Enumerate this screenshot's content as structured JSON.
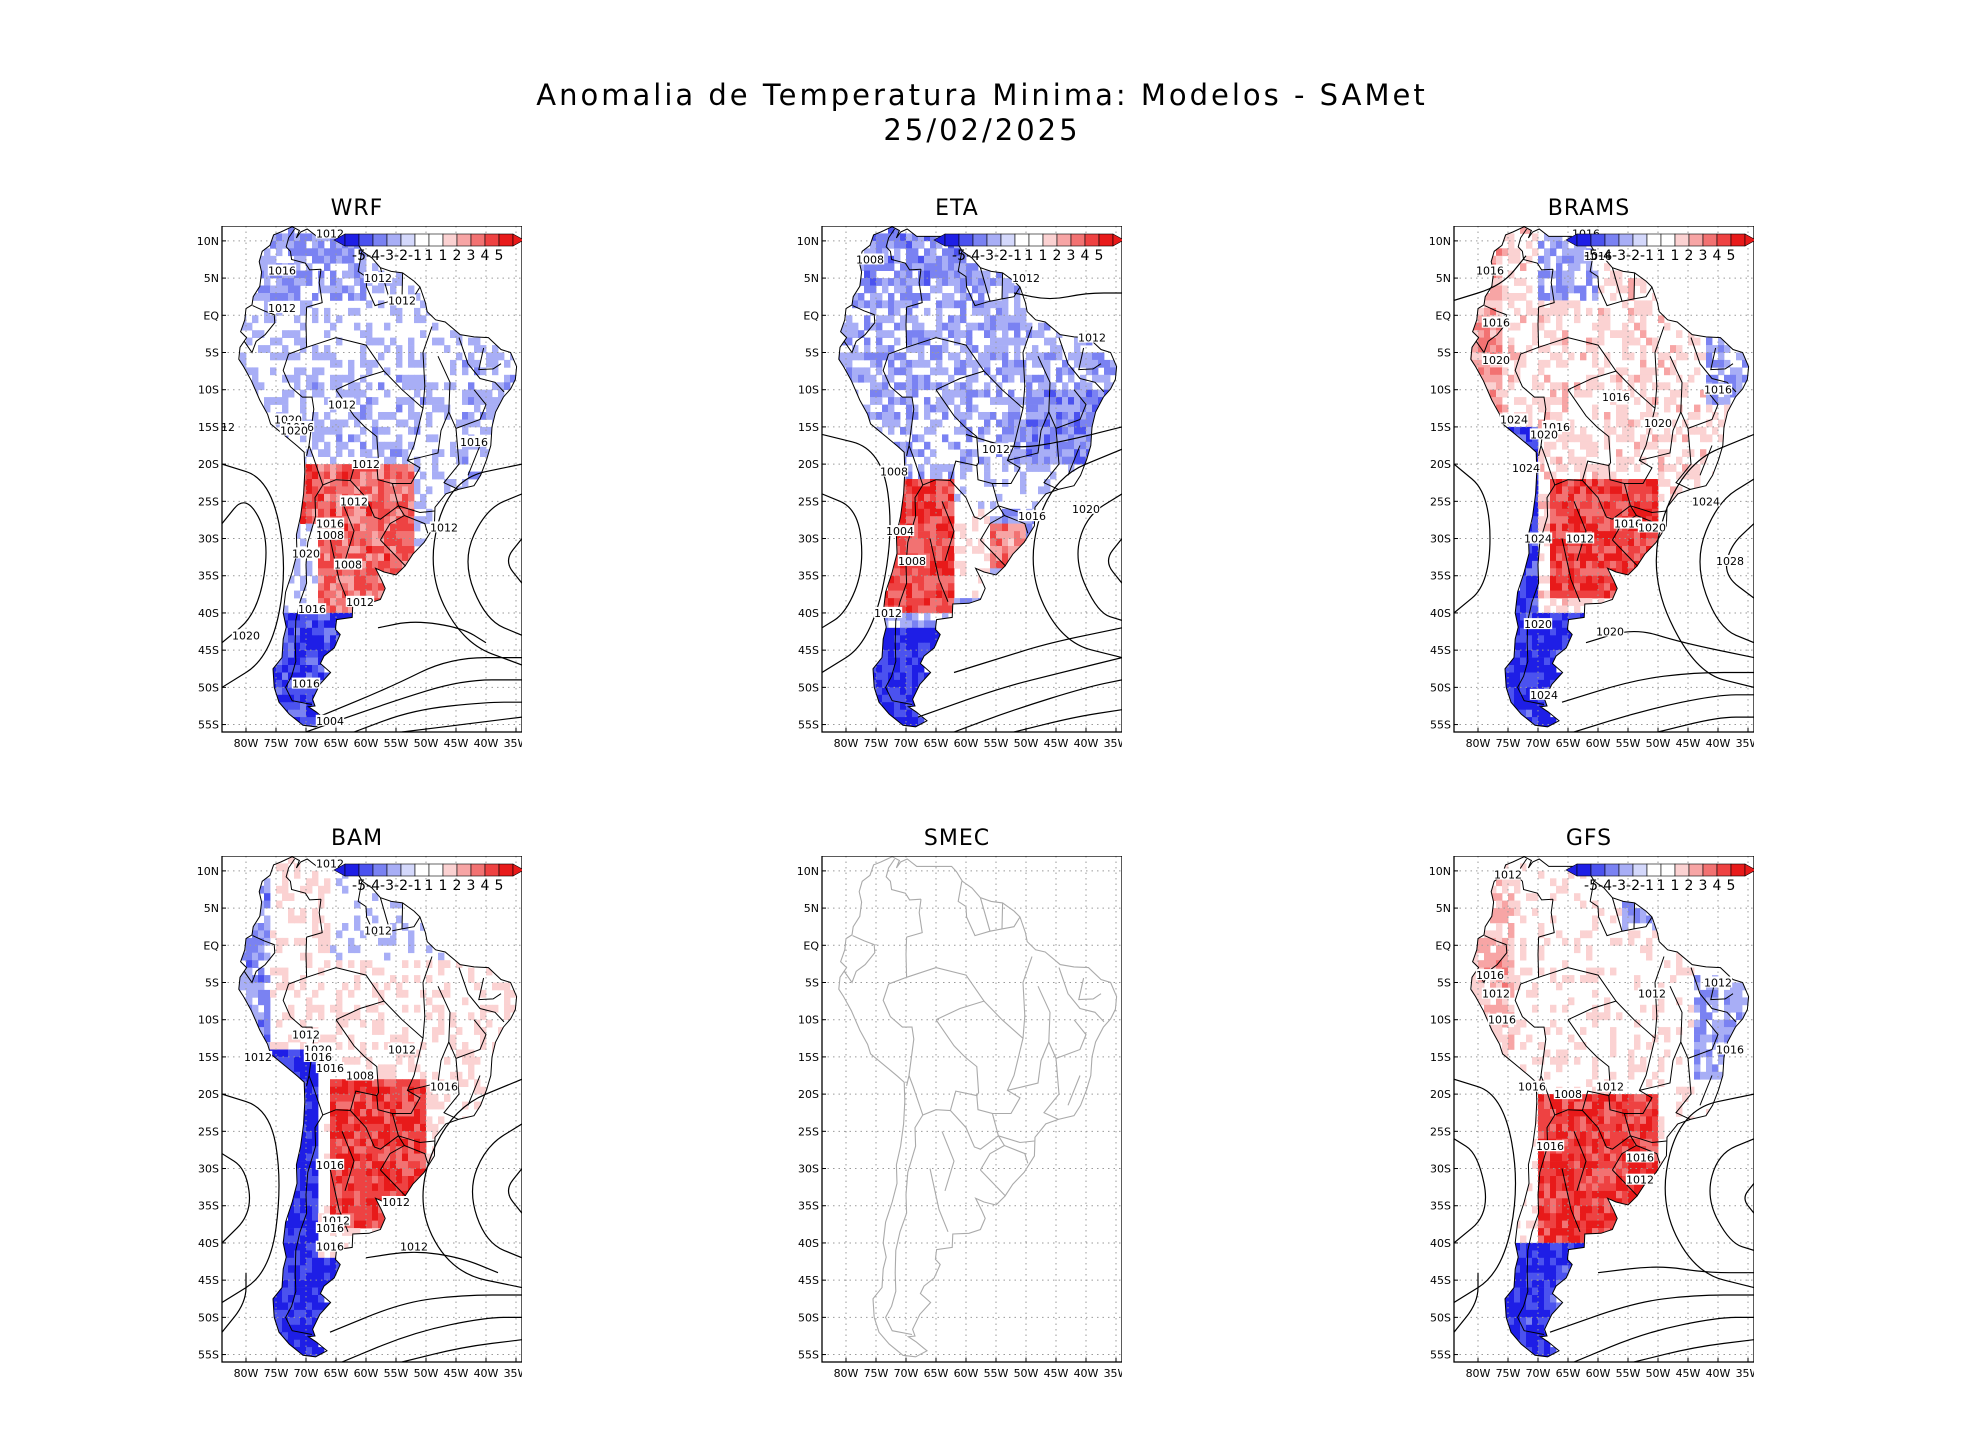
{
  "title": {
    "line1": "Anomalia de Temperatura Minima: Modelos - SAMet",
    "line2": "25/02/2025"
  },
  "colors": {
    "neg": [
      "#1e1ee6",
      "#4b52ef",
      "#7a82f2",
      "#a8aef6",
      "#d4d8fb"
    ],
    "neutral": "#ffffff",
    "pos": [
      "#fbd2d2",
      "#f7a5a5",
      "#f27272",
      "#ee4242",
      "#e81a1a"
    ],
    "contour": "#000000",
    "border": "#000000",
    "border_blank": "#aaaaaa",
    "grid": "#9a9a9a"
  },
  "colorbar": {
    "labels": [
      "-5",
      "-4",
      "-3",
      "-2",
      "-1",
      "1",
      "1",
      "2",
      "3",
      "4",
      "5"
    ]
  },
  "axes": {
    "lat_labels": [
      "10N",
      "5N",
      "EQ",
      "5S",
      "10S",
      "15S",
      "20S",
      "25S",
      "30S",
      "35S",
      "40S",
      "45S",
      "50S",
      "55S"
    ],
    "lon_labels": [
      "80W",
      "75W",
      "70W",
      "65W",
      "60W",
      "55W",
      "50W",
      "45W",
      "40W",
      "35W"
    ]
  },
  "panels": [
    {
      "name": "WRF",
      "has_data": true,
      "regime": "wrf",
      "labels": [
        "1012",
        "1012",
        "1016",
        "1012",
        "1012",
        "1012",
        "1020",
        "1016",
        "1020",
        "1012",
        "1016",
        "1012",
        "1016",
        "1008",
        "1020",
        "1008",
        "1012",
        "1016",
        "1012",
        "1016",
        "1004",
        "1020",
        "12"
      ]
    },
    {
      "name": "ETA",
      "has_data": true,
      "regime": "eta",
      "labels": [
        "1008",
        "1012",
        "1012",
        "1012",
        "1008",
        "1004",
        "1008",
        "1016",
        "1020",
        "1012"
      ]
    },
    {
      "name": "BRAMS",
      "has_data": true,
      "regime": "brams",
      "labels": [
        "1016",
        "1016",
        "1016",
        "1016",
        "1020",
        "1016",
        "1016",
        "1024",
        "1016",
        "1020",
        "1020",
        "1024",
        "1024",
        "1012",
        "1016",
        "1020",
        "1024",
        "1028",
        "1020",
        "1020",
        "1024"
      ]
    },
    {
      "name": "BAM",
      "has_data": true,
      "regime": "bam",
      "labels": [
        "1012",
        "1012",
        "1012",
        "1012",
        "1020",
        "1016",
        "1016",
        "1008",
        "1016",
        "1012",
        "1016",
        "1012",
        "1012",
        "1016",
        "1016",
        "1012"
      ]
    },
    {
      "name": "SMEC",
      "has_data": false,
      "regime": "none",
      "labels": []
    },
    {
      "name": "GFS",
      "has_data": true,
      "regime": "gfs",
      "labels": [
        "1012",
        "1016",
        "1012",
        "1012",
        "1012",
        "1016",
        "1016",
        "1016",
        "1008",
        "1012",
        "1016",
        "1012",
        "1016"
      ]
    }
  ]
}
